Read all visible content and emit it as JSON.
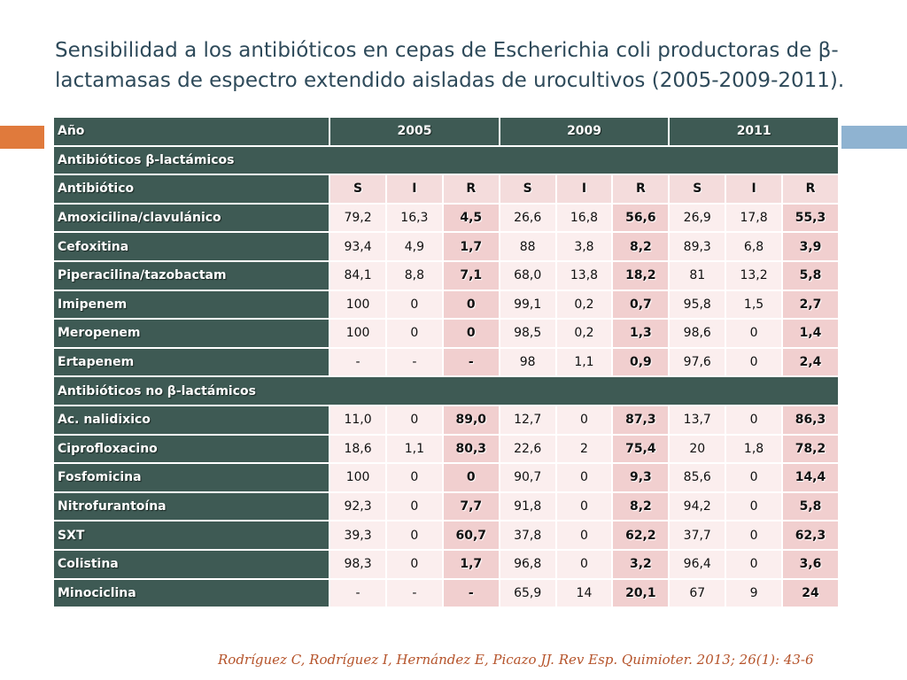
{
  "title": "Sensibilidad a los antibióticos en cepas de Escherichia coli productoras de  β-lactamasas de espectro extendido aisladas de urocultivos (2005-2009-2011).",
  "colors": {
    "header": "#3e5a54",
    "cell": "#fbeeee",
    "r_cell": "#f1cfcf",
    "accent_left": "#e07a3c",
    "accent_right": "#8fb3d1",
    "citation": "#b5532a",
    "title": "#2e4a5a"
  },
  "table": {
    "year_label": "Año",
    "years": [
      "2005",
      "2009",
      "2011"
    ],
    "section1": "Antibióticos β-lactámicos",
    "sub_label": "Antibiótico",
    "sub_cols": [
      "S",
      "I",
      "R",
      "S",
      "I",
      "R",
      "S",
      "I",
      "R"
    ],
    "rows1": [
      {
        "name": "Amoxicilina/clavulánico",
        "values": [
          "79,2",
          "16,3",
          "4,5",
          "26,6",
          "16,8",
          "56,6",
          "26,9",
          "17,8",
          "55,3"
        ]
      },
      {
        "name": "Cefoxitina",
        "values": [
          "93,4",
          "4,9",
          "1,7",
          "88",
          "3,8",
          "8,2",
          "89,3",
          "6,8",
          "3,9"
        ]
      },
      {
        "name": "Piperacilina/tazobactam",
        "values": [
          "84,1",
          "8,8",
          "7,1",
          "68,0",
          "13,8",
          "18,2",
          "81",
          "13,2",
          "5,8"
        ]
      },
      {
        "name": "Imipenem",
        "values": [
          "100",
          "0",
          "0",
          "99,1",
          "0,2",
          "0,7",
          "95,8",
          "1,5",
          "2,7"
        ]
      },
      {
        "name": "Meropenem",
        "values": [
          "100",
          "0",
          "0",
          "98,5",
          "0,2",
          "1,3",
          "98,6",
          "0",
          "1,4"
        ]
      },
      {
        "name": "Ertapenem",
        "values": [
          "-",
          "-",
          "-",
          "98",
          "1,1",
          "0,9",
          "97,6",
          "0",
          "2,4"
        ]
      }
    ],
    "section2": "Antibióticos no β-lactámicos",
    "rows2": [
      {
        "name": "Ac. nalidixico",
        "values": [
          "11,0",
          "0",
          "89,0",
          "12,7",
          "0",
          "87,3",
          "13,7",
          "0",
          "86,3"
        ]
      },
      {
        "name": "Ciprofloxacino",
        "values": [
          "18,6",
          "1,1",
          "80,3",
          "22,6",
          "2",
          "75,4",
          "20",
          "1,8",
          "78,2"
        ]
      },
      {
        "name": "Fosfomicina",
        "values": [
          "100",
          "0",
          "0",
          "90,7",
          "0",
          "9,3",
          "85,6",
          "0",
          "14,4"
        ]
      },
      {
        "name": "Nitrofurantoína",
        "values": [
          "92,3",
          "0",
          "7,7",
          "91,8",
          "0",
          "8,2",
          "94,2",
          "0",
          "5,8"
        ]
      },
      {
        "name": "SXT",
        "values": [
          "39,3",
          "0",
          "60,7",
          "37,8",
          "0",
          "62,2",
          "37,7",
          "0",
          "62,3"
        ]
      },
      {
        "name": "Colistina",
        "values": [
          "98,3",
          "0",
          "1,7",
          "96,8",
          "0",
          "3,2",
          "96,4",
          "0",
          "3,6"
        ]
      },
      {
        "name": "Minociclina",
        "values": [
          "-",
          "-",
          "-",
          "65,9",
          "14",
          "20,1",
          "67",
          "9",
          "24"
        ]
      }
    ]
  },
  "citation": "Rodríguez C, Rodríguez  I, Hernández E, Picazo JJ. Rev Esp. Quimioter. 2013; 26(1): 43-6"
}
